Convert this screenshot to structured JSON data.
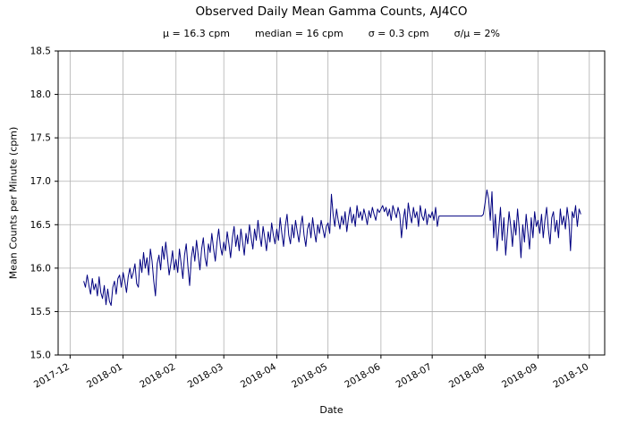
{
  "page": {
    "background": "#ffffff"
  },
  "chart_data": {
    "type": "line",
    "title": "Observed Daily Mean Gamma Counts, AJ4CO",
    "subtitle_stats": [
      "μ = 16.3 cpm",
      "median = 16 cpm",
      "σ = 0.3 cpm",
      "σ/μ = 2%"
    ],
    "xlabel": "Date",
    "ylabel": "Mean Counts per Minute (cpm)",
    "legend": "none",
    "grid": true,
    "grid_color": "#b0b0b0",
    "line_color": "#000080",
    "ylim": [
      15.0,
      18.5
    ],
    "y_ticks": [
      "15.0",
      "15.5",
      "16.0",
      "16.5",
      "17.0",
      "17.5",
      "18.0",
      "18.5"
    ],
    "x_domain": {
      "start": "2017-11-24",
      "end": "2018-10-10"
    },
    "x_ticks": [
      {
        "label": "2017-12",
        "date": "2017-12-01"
      },
      {
        "label": "2018-01",
        "date": "2018-01-01"
      },
      {
        "label": "2018-02",
        "date": "2018-02-01"
      },
      {
        "label": "2018-03",
        "date": "2018-03-01"
      },
      {
        "label": "2018-04",
        "date": "2018-04-01"
      },
      {
        "label": "2018-05",
        "date": "2018-05-01"
      },
      {
        "label": "2018-06",
        "date": "2018-06-01"
      },
      {
        "label": "2018-07",
        "date": "2018-07-01"
      },
      {
        "label": "2018-08",
        "date": "2018-08-01"
      },
      {
        "label": "2018-09",
        "date": "2018-09-01"
      },
      {
        "label": "2018-10",
        "date": "2018-10-01"
      }
    ],
    "series": [
      {
        "name": "daily-mean-gamma-counts-cpm",
        "start_date": "2017-12-09",
        "cadence": "daily",
        "values": [
          15.85,
          15.78,
          15.92,
          15.8,
          15.7,
          15.88,
          15.75,
          15.82,
          15.68,
          15.9,
          15.72,
          15.65,
          15.8,
          15.58,
          15.76,
          15.62,
          15.57,
          15.78,
          15.85,
          15.7,
          15.88,
          15.92,
          15.78,
          15.95,
          15.85,
          15.72,
          15.9,
          16.0,
          15.88,
          15.95,
          16.05,
          15.82,
          15.78,
          16.1,
          15.95,
          16.18,
          16.0,
          16.12,
          15.92,
          16.22,
          16.08,
          15.85,
          15.68,
          16.05,
          16.15,
          15.98,
          16.25,
          16.1,
          16.3,
          16.12,
          15.92,
          16.05,
          16.2,
          15.98,
          16.1,
          15.95,
          16.22,
          16.05,
          15.88,
          16.15,
          16.28,
          16.02,
          15.8,
          16.12,
          16.25,
          16.08,
          16.32,
          16.15,
          15.98,
          16.22,
          16.35,
          16.12,
          16.02,
          16.28,
          16.18,
          16.4,
          16.22,
          16.08,
          16.3,
          16.45,
          16.25,
          16.15,
          16.3,
          16.2,
          16.42,
          16.28,
          16.12,
          16.35,
          16.48,
          16.25,
          16.38,
          16.2,
          16.45,
          16.3,
          16.15,
          16.4,
          16.28,
          16.5,
          16.35,
          16.22,
          16.45,
          16.32,
          16.55,
          16.38,
          16.25,
          16.48,
          16.35,
          16.2,
          16.42,
          16.3,
          16.52,
          16.38,
          16.28,
          16.45,
          16.32,
          16.58,
          16.4,
          16.25,
          16.48,
          16.62,
          16.38,
          16.28,
          16.5,
          16.35,
          16.55,
          16.42,
          16.3,
          16.48,
          16.6,
          16.38,
          16.25,
          16.45,
          16.52,
          16.35,
          16.58,
          16.42,
          16.3,
          16.5,
          16.4,
          16.55,
          16.45,
          16.35,
          16.48,
          16.52,
          16.4,
          16.85,
          16.62,
          16.48,
          16.68,
          16.55,
          16.45,
          16.6,
          16.5,
          16.65,
          16.42,
          16.58,
          16.7,
          16.52,
          16.62,
          16.48,
          16.72,
          16.58,
          16.65,
          16.55,
          16.68,
          16.6,
          16.5,
          16.66,
          16.58,
          16.7,
          16.62,
          16.55,
          16.68,
          16.64,
          16.68,
          16.72,
          16.65,
          16.7,
          16.6,
          16.68,
          16.55,
          16.72,
          16.65,
          16.58,
          16.7,
          16.62,
          16.35,
          16.55,
          16.68,
          16.45,
          16.75,
          16.62,
          16.52,
          16.7,
          16.58,
          16.65,
          16.48,
          16.72,
          16.6,
          16.55,
          16.68,
          16.5,
          16.62,
          16.58,
          16.65,
          16.55,
          16.7,
          16.48,
          16.6,
          16.6,
          16.6,
          16.6,
          16.6,
          16.6,
          16.6,
          16.6,
          16.6,
          16.6,
          16.6,
          16.6,
          16.6,
          16.6,
          16.6,
          16.6,
          16.6,
          16.6,
          16.6,
          16.6,
          16.6,
          16.6,
          16.6,
          16.6,
          16.6,
          16.6,
          16.62,
          16.75,
          16.9,
          16.8,
          16.55,
          16.88,
          16.35,
          16.62,
          16.2,
          16.45,
          16.7,
          16.32,
          16.58,
          16.15,
          16.4,
          16.65,
          16.48,
          16.25,
          16.55,
          16.38,
          16.68,
          16.45,
          16.12,
          16.5,
          16.3,
          16.62,
          16.42,
          16.22,
          16.58,
          16.35,
          16.65,
          16.48,
          16.55,
          16.4,
          16.62,
          16.35,
          16.55,
          16.7,
          16.45,
          16.28,
          16.58,
          16.65,
          16.42,
          16.55,
          16.35,
          16.68,
          16.5,
          16.6,
          16.45,
          16.7,
          16.55,
          16.2,
          16.65,
          16.58,
          16.72,
          16.48,
          16.68,
          16.62
        ]
      }
    ]
  }
}
